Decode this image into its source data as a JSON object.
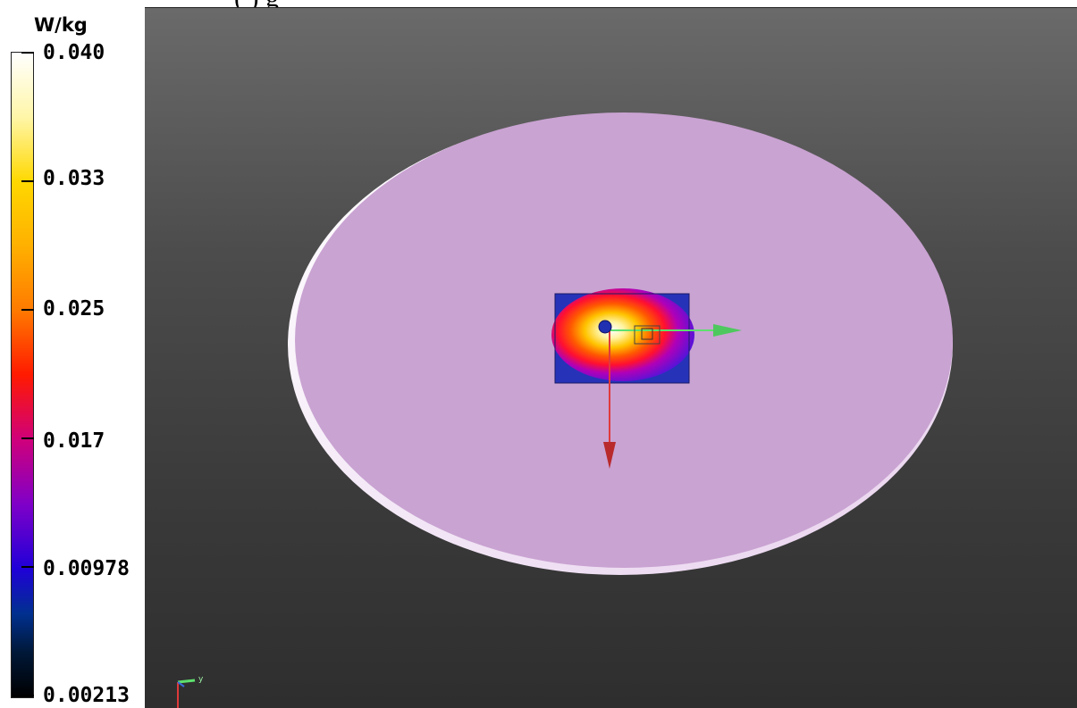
{
  "caption": {
    "fragment": "(        )                    g"
  },
  "legend": {
    "unit": "W/kg",
    "labels": [
      "0.040",
      "0.033",
      "0.025",
      "0.017",
      "0.00978",
      "0.00213"
    ]
  },
  "viewport": {
    "background_top": "#6a6a6a",
    "background_bottom": "#2e2e2e",
    "phantom_color": "#c8a2d1",
    "axis_x_color": "#5ee06e",
    "axis_z_color": "#e0393b",
    "triad_y_label": "y"
  },
  "colors": {
    "legend_high": "#ffffff",
    "legend_mid": "#ff1a00",
    "legend_low": "#000000"
  }
}
